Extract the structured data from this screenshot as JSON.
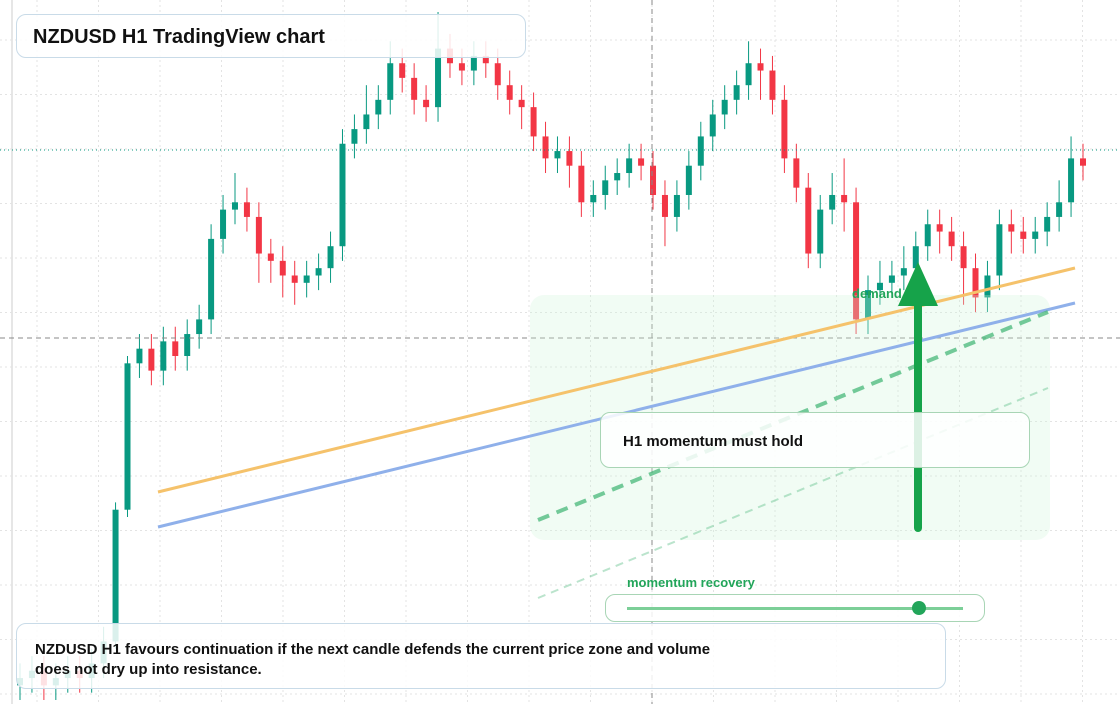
{
  "header": {
    "title": "NZDUSD H1 TradingView chart"
  },
  "chart_data": {
    "type": "candlestick",
    "up_color": "#089981",
    "down_color": "#f23645",
    "open": [
      8,
      9,
      10,
      8,
      9,
      10,
      9,
      11,
      14,
      32,
      52,
      54,
      51,
      55,
      53,
      56,
      58,
      69,
      73,
      74,
      72,
      67,
      66,
      64,
      63,
      64,
      65,
      68,
      82,
      84,
      86,
      88,
      93,
      91,
      88,
      87,
      95,
      93,
      92,
      94,
      93,
      90,
      88,
      87,
      83,
      80,
      81,
      79,
      74,
      75,
      77,
      78,
      80,
      79,
      75,
      72,
      75,
      79,
      83,
      86,
      88,
      90,
      93,
      92,
      88,
      80,
      76,
      67,
      73,
      75,
      74,
      58,
      62,
      63,
      64,
      65,
      68,
      71,
      70,
      68,
      65,
      61,
      64,
      71,
      70,
      69,
      70,
      72,
      74,
      80
    ],
    "high": [
      11,
      12,
      12,
      11,
      12,
      12,
      13,
      16,
      33,
      53,
      56,
      56,
      57,
      57,
      58,
      60,
      71,
      75,
      78,
      76,
      74,
      69,
      68,
      66,
      66,
      67,
      70,
      84,
      86,
      90,
      90,
      96,
      95,
      93,
      90,
      100,
      97,
      95,
      96,
      96,
      95,
      92,
      90,
      89,
      85,
      83,
      83,
      81,
      77,
      79,
      80,
      82,
      82,
      81,
      77,
      77,
      81,
      85,
      88,
      90,
      92,
      96,
      95,
      94,
      90,
      82,
      78,
      75,
      78,
      80,
      76,
      64,
      66,
      66,
      68,
      70,
      73,
      73,
      72,
      70,
      67,
      66,
      73,
      73,
      72,
      72,
      74,
      77,
      83,
      82
    ],
    "low": [
      6,
      7,
      6,
      6,
      7,
      7,
      7,
      9,
      13,
      31,
      50,
      49,
      49,
      51,
      51,
      54,
      56,
      67,
      71,
      70,
      63,
      63,
      61,
      60,
      61,
      62,
      63,
      66,
      80,
      82,
      84,
      86,
      89,
      86,
      85,
      85,
      91,
      90,
      90,
      91,
      88,
      86,
      84,
      81,
      78,
      78,
      76,
      72,
      72,
      73,
      75,
      76,
      77,
      73,
      68,
      70,
      73,
      77,
      81,
      84,
      86,
      88,
      88,
      86,
      78,
      74,
      65,
      65,
      71,
      70,
      56,
      56,
      60,
      61,
      62,
      63,
      66,
      67,
      66,
      60,
      59,
      59,
      62,
      67,
      67,
      67,
      68,
      70,
      72,
      77
    ],
    "close": [
      9,
      10,
      8,
      9,
      10,
      9,
      11,
      14,
      32,
      52,
      54,
      51,
      55,
      53,
      56,
      58,
      69,
      73,
      74,
      72,
      67,
      66,
      64,
      63,
      64,
      65,
      68,
      82,
      84,
      86,
      88,
      93,
      91,
      88,
      87,
      95,
      93,
      92,
      94,
      93,
      90,
      88,
      87,
      83,
      80,
      81,
      79,
      74,
      75,
      77,
      78,
      80,
      79,
      75,
      72,
      75,
      79,
      83,
      86,
      88,
      90,
      93,
      92,
      88,
      80,
      76,
      67,
      73,
      75,
      74,
      58,
      62,
      63,
      64,
      65,
      68,
      71,
      70,
      68,
      65,
      61,
      64,
      71,
      70,
      69,
      70,
      72,
      74,
      80,
      79
    ]
  },
  "annotations": {
    "zone_label": "demand side",
    "callout": "H1 momentum must hold",
    "slider_label": "momentum recovery"
  },
  "caption": "NZDUSD H1 favours continuation if the next candle defends the current price zone and volume does not dry up into resistance."
}
